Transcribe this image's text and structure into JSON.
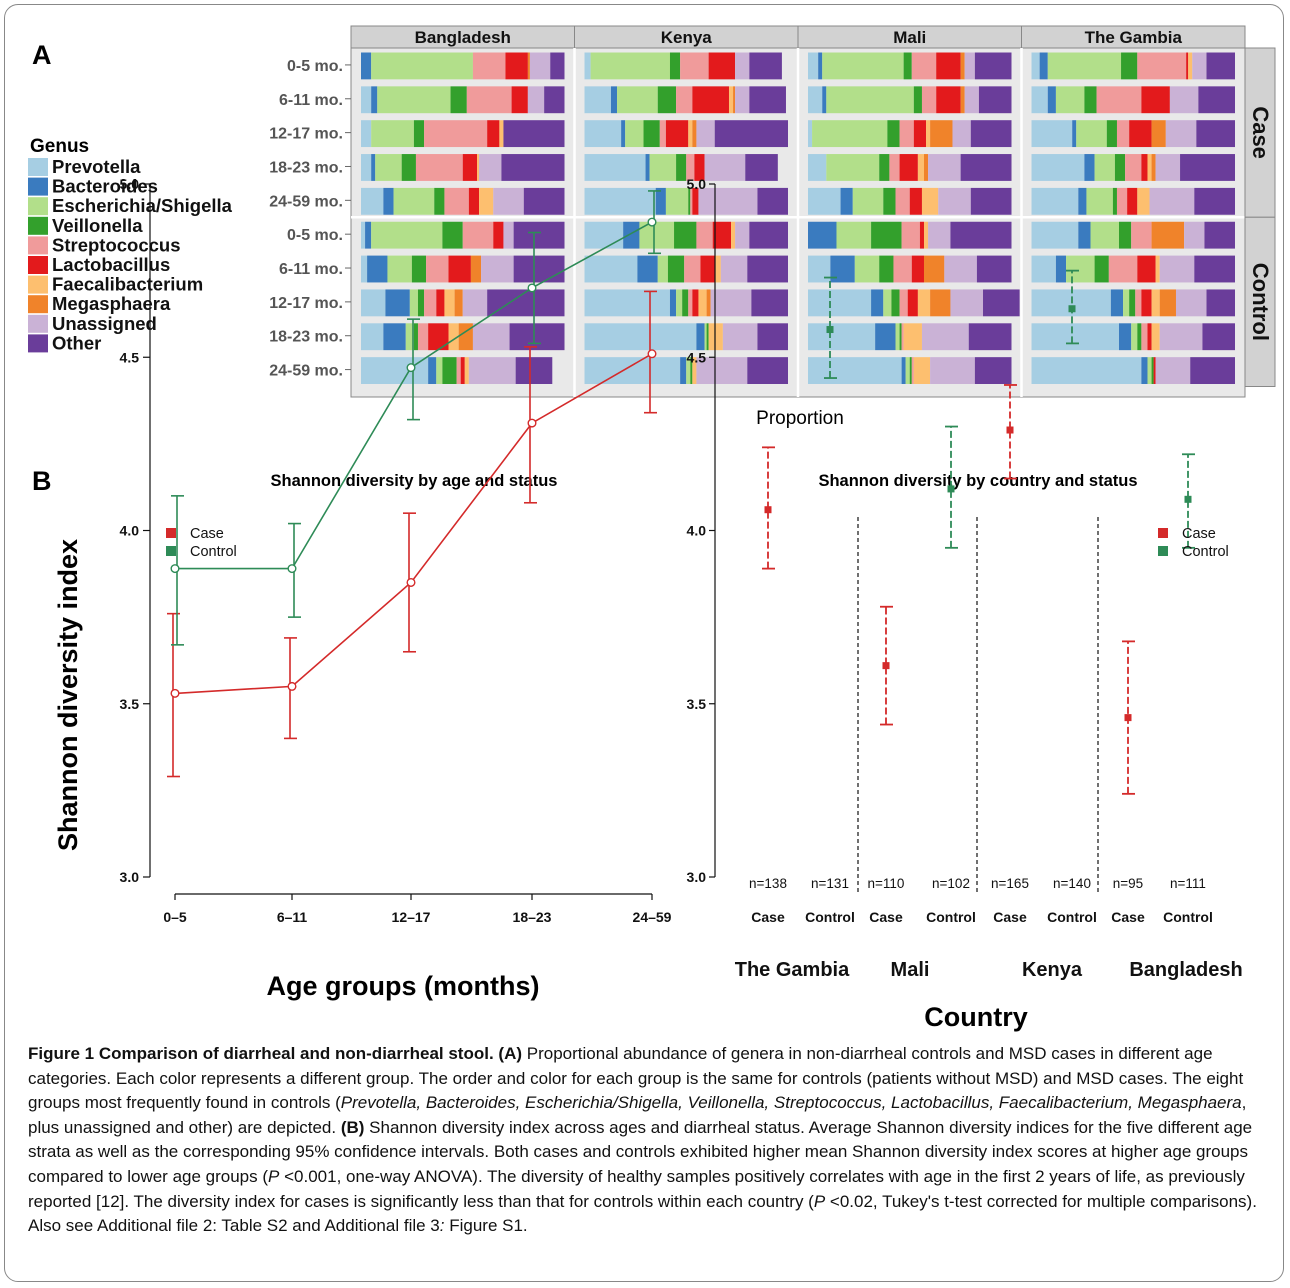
{
  "panel_labels": {
    "a": "A",
    "b": "B"
  },
  "legend": {
    "title": "Genus",
    "items": [
      {
        "name": "Prevotella",
        "color": "#a6cee3"
      },
      {
        "name": "Bacteroides",
        "color": "#3a7bbf"
      },
      {
        "name": "Escherichia/Shigella",
        "color": "#b2df8a"
      },
      {
        "name": "Veillonella",
        "color": "#33a02c"
      },
      {
        "name": "Streptococcus",
        "color": "#f09b9b"
      },
      {
        "name": "Lactobacillus",
        "color": "#e31a1c"
      },
      {
        "name": "Faecalibacterium",
        "color": "#fdbf6f"
      },
      {
        "name": "Megasphaera",
        "color": "#f0832a"
      },
      {
        "name": "Unassigned",
        "color": "#cab2d6"
      },
      {
        "name": "Other",
        "color": "#6a3d9a"
      }
    ]
  },
  "chart_data": [
    {
      "type": "bar",
      "xlabel": "Proportion",
      "countries": [
        "Bangladesh",
        "Kenya",
        "Mali",
        "The Gambia"
      ],
      "groups": [
        "Case",
        "Control"
      ],
      "age_labels": [
        "0-5 mo.",
        "6-11 mo.",
        "12-17 mo.",
        "18-23 mo.",
        "24-59 mo."
      ],
      "genera_order": [
        "Prevotella",
        "Bacteroides",
        "Escherichia/Shigella",
        "Veillonella",
        "Streptococcus",
        "Lactobacillus",
        "Faecalibacterium",
        "Megasphaera",
        "Unassigned",
        "Other"
      ],
      "proportions": {
        "Bangladesh": {
          "Case": [
            [
              0.0,
              0.05,
              0.5,
              0.0,
              0.16,
              0.11,
              0.0,
              0.01,
              0.1,
              0.07
            ],
            [
              0.05,
              0.03,
              0.36,
              0.08,
              0.22,
              0.08,
              0.0,
              0.0,
              0.08,
              0.1
            ],
            [
              0.05,
              0.0,
              0.21,
              0.05,
              0.31,
              0.06,
              0.02,
              0.0,
              0.0,
              0.3
            ],
            [
              0.05,
              0.02,
              0.13,
              0.07,
              0.23,
              0.07,
              0.01,
              0.0,
              0.11,
              0.31
            ],
            [
              0.11,
              0.05,
              0.2,
              0.05,
              0.12,
              0.05,
              0.07,
              0.0,
              0.15,
              0.2
            ]
          ],
          "Control": [
            [
              0.02,
              0.03,
              0.35,
              0.1,
              0.15,
              0.05,
              0.0,
              0.0,
              0.05,
              0.25
            ],
            [
              0.03,
              0.1,
              0.12,
              0.07,
              0.11,
              0.11,
              0.0,
              0.05,
              0.16,
              0.25
            ],
            [
              0.12,
              0.12,
              0.04,
              0.03,
              0.06,
              0.04,
              0.05,
              0.04,
              0.12,
              0.38
            ],
            [
              0.11,
              0.11,
              0.04,
              0.02,
              0.05,
              0.1,
              0.05,
              0.07,
              0.18,
              0.27
            ],
            [
              0.33,
              0.04,
              0.03,
              0.07,
              0.02,
              0.02,
              0.02,
              0.0,
              0.23,
              0.18
            ]
          ]
        },
        "Kenya": {
          "Case": [
            [
              0.03,
              0.0,
              0.39,
              0.05,
              0.14,
              0.13,
              0.0,
              0.0,
              0.07,
              0.16
            ],
            [
              0.13,
              0.03,
              0.2,
              0.09,
              0.08,
              0.18,
              0.02,
              0.01,
              0.07,
              0.18
            ],
            [
              0.18,
              0.02,
              0.09,
              0.08,
              0.03,
              0.11,
              0.02,
              0.02,
              0.09,
              0.36
            ],
            [
              0.3,
              0.02,
              0.13,
              0.05,
              0.04,
              0.05,
              0.0,
              0.0,
              0.2,
              0.16
            ],
            [
              0.35,
              0.05,
              0.11,
              0.01,
              0.01,
              0.03,
              0.0,
              0.0,
              0.29,
              0.15
            ]
          ],
          "Control": [
            [
              0.19,
              0.08,
              0.17,
              0.11,
              0.08,
              0.09,
              0.02,
              0.0,
              0.07,
              0.19
            ],
            [
              0.26,
              0.1,
              0.05,
              0.08,
              0.08,
              0.07,
              0.03,
              0.0,
              0.13,
              0.2
            ],
            [
              0.42,
              0.03,
              0.03,
              0.03,
              0.02,
              0.03,
              0.04,
              0.02,
              0.2,
              0.18
            ],
            [
              0.55,
              0.04,
              0.01,
              0.01,
              0.0,
              0.0,
              0.07,
              0.0,
              0.17,
              0.15
            ],
            [
              0.47,
              0.03,
              0.02,
              0.01,
              0.0,
              0.0,
              0.02,
              0.0,
              0.25,
              0.2
            ]
          ]
        },
        "Mali": {
          "Case": [
            [
              0.05,
              0.02,
              0.4,
              0.04,
              0.12,
              0.12,
              0.0,
              0.02,
              0.05,
              0.18
            ],
            [
              0.07,
              0.02,
              0.43,
              0.04,
              0.07,
              0.12,
              0.0,
              0.02,
              0.07,
              0.16
            ],
            [
              0.02,
              0.0,
              0.37,
              0.06,
              0.07,
              0.06,
              0.02,
              0.11,
              0.09,
              0.2
            ],
            [
              0.09,
              0.0,
              0.26,
              0.05,
              0.05,
              0.09,
              0.03,
              0.02,
              0.16,
              0.25
            ],
            [
              0.16,
              0.06,
              0.15,
              0.06,
              0.07,
              0.06,
              0.08,
              0.0,
              0.16,
              0.2
            ]
          ],
          "Control": [
            [
              0.0,
              0.14,
              0.17,
              0.15,
              0.09,
              0.02,
              0.02,
              0.0,
              0.11,
              0.3
            ],
            [
              0.11,
              0.12,
              0.12,
              0.07,
              0.09,
              0.06,
              0.0,
              0.1,
              0.16,
              0.17
            ],
            [
              0.31,
              0.06,
              0.04,
              0.04,
              0.04,
              0.05,
              0.06,
              0.1,
              0.16,
              0.18
            ],
            [
              0.33,
              0.1,
              0.02,
              0.01,
              0.01,
              0.0,
              0.09,
              0.0,
              0.23,
              0.21
            ],
            [
              0.46,
              0.02,
              0.02,
              0.01,
              0.01,
              0.0,
              0.08,
              0.0,
              0.22,
              0.18
            ]
          ]
        },
        "The Gambia": {
          "Case": [
            [
              0.04,
              0.04,
              0.36,
              0.08,
              0.24,
              0.01,
              0.02,
              0.0,
              0.07,
              0.14
            ],
            [
              0.08,
              0.04,
              0.14,
              0.06,
              0.22,
              0.14,
              0.0,
              0.0,
              0.14,
              0.18
            ],
            [
              0.2,
              0.02,
              0.15,
              0.05,
              0.06,
              0.11,
              0.0,
              0.07,
              0.15,
              0.19
            ],
            [
              0.26,
              0.05,
              0.1,
              0.05,
              0.08,
              0.03,
              0.02,
              0.02,
              0.12,
              0.27
            ],
            [
              0.23,
              0.04,
              0.13,
              0.02,
              0.05,
              0.05,
              0.06,
              0.0,
              0.22,
              0.2
            ]
          ],
          "Control": [
            [
              0.23,
              0.06,
              0.14,
              0.06,
              0.1,
              0.0,
              0.0,
              0.16,
              0.1,
              0.15
            ],
            [
              0.12,
              0.05,
              0.14,
              0.07,
              0.14,
              0.09,
              0.02,
              0.0,
              0.17,
              0.2
            ],
            [
              0.39,
              0.06,
              0.03,
              0.03,
              0.03,
              0.05,
              0.04,
              0.08,
              0.15,
              0.14
            ],
            [
              0.43,
              0.06,
              0.03,
              0.02,
              0.03,
              0.02,
              0.04,
              0.0,
              0.21,
              0.16
            ],
            [
              0.54,
              0.03,
              0.02,
              0.01,
              0.0,
              0.01,
              0.0,
              0.0,
              0.17,
              0.22
            ]
          ]
        }
      }
    },
    {
      "type": "line",
      "title": "Shannon diversity by age and status",
      "xlabel": "Age groups (months)",
      "ylabel": "Shannon diversity index",
      "categories": [
        "0–5",
        "6–11",
        "12–17",
        "18–23",
        "24–59"
      ],
      "ylim": [
        3.0,
        5.0
      ],
      "yticks": [
        "3.0",
        "3.5",
        "4.0",
        "4.5",
        "5.0"
      ],
      "legend": "top-left",
      "series": [
        {
          "name": "Case",
          "color": "#d42a2a",
          "values": [
            3.53,
            3.55,
            3.85,
            4.31,
            4.51
          ],
          "lower": [
            3.29,
            3.4,
            3.65,
            4.08,
            4.34
          ],
          "upper": [
            3.76,
            3.69,
            4.05,
            4.53,
            4.69
          ]
        },
        {
          "name": "Control",
          "color": "#2e8b57",
          "values": [
            3.89,
            3.89,
            4.47,
            4.7,
            4.89
          ],
          "lower": [
            3.67,
            3.75,
            4.32,
            4.54,
            4.8
          ],
          "upper": [
            4.1,
            4.02,
            4.61,
            4.86,
            4.98
          ]
        }
      ]
    },
    {
      "type": "scatter",
      "title": "Shannon diversity by country and status",
      "xlabel": "Country",
      "ylim": [
        3.0,
        5.0
      ],
      "yticks": [
        "3.0",
        "3.5",
        "4.0",
        "4.5",
        "5.0"
      ],
      "legend": "top-right",
      "series_names": [
        "Case",
        "Control"
      ],
      "series_colors": [
        "#d42a2a",
        "#2e8b57"
      ],
      "countries": [
        "The Gambia",
        "Mali",
        "Kenya",
        "Bangladesh"
      ],
      "points": [
        {
          "country": "The Gambia",
          "status": "Case",
          "label": "Case",
          "n": "n=138",
          "mean": 4.06,
          "lower": 3.89,
          "upper": 4.24
        },
        {
          "country": "The Gambia",
          "status": "Control",
          "label": "Control",
          "n": "n=131",
          "mean": 4.58,
          "lower": 4.44,
          "upper": 4.73
        },
        {
          "country": "Mali",
          "status": "Case",
          "label": "Case",
          "n": "n=110",
          "mean": 3.61,
          "lower": 3.44,
          "upper": 3.78
        },
        {
          "country": "Mali",
          "status": "Control",
          "label": "Control",
          "n": "n=102",
          "mean": 4.12,
          "lower": 3.95,
          "upper": 4.3
        },
        {
          "country": "Kenya",
          "status": "Case",
          "label": "Case",
          "n": "n=165",
          "mean": 4.29,
          "lower": 4.15,
          "upper": 4.42
        },
        {
          "country": "Kenya",
          "status": "Control",
          "label": "Control",
          "n": "n=140",
          "mean": 4.64,
          "lower": 4.54,
          "upper": 4.75
        },
        {
          "country": "Bangladesh",
          "status": "Case",
          "label": "Case",
          "n": "n=95",
          "mean": 3.46,
          "lower": 3.24,
          "upper": 3.68
        },
        {
          "country": "Bangladesh",
          "status": "Control",
          "label": "Control",
          "n": "n=111",
          "mean": 4.09,
          "lower": 3.95,
          "upper": 4.22
        }
      ]
    }
  ],
  "caption": {
    "title": "Figure 1 Comparison of diarrheal and non-diarrheal stool.",
    "label_a": "(A)",
    "text_a1": " Proportional abundance of genera in non-diarrheal controls and MSD cases in different age categories. Each color represents a different group. The order and color for each group is the same for controls (patients without MSD) and MSD cases. The eight groups most frequently found in controls (",
    "genera_italic": "Prevotella, Bacteroides, Escherichia/Shigella, Veillonella, Streptococcus, Lactobacillus, Faecalibacterium, Megasphaera",
    "text_a2": ", plus unassigned and other) are depicted. ",
    "label_b": "(B)",
    "text_b1": " Shannon diversity index across ages and diarrheal status. Average Shannon diversity indices for the five different age strata as well as the corresponding 95% confidence intervals. Both cases and controls exhibited higher mean Shannon diversity index scores at higher age groups compared to lower age groups (",
    "p1": "P",
    "text_b2": " <0.001, one-way ANOVA). The diversity of healthy samples positively correlates with age in the first 2 years of life, as previously reported [12]. The diversity index for cases is significantly less than that for controls within each country (",
    "p2": "P",
    "text_b3": " <0.02, Tukey's t-test corrected for multiple comparisons). Also see Additional file 2: Table S2 and Additional file 3",
    "colon": ":",
    "text_b4": " Figure S1."
  }
}
